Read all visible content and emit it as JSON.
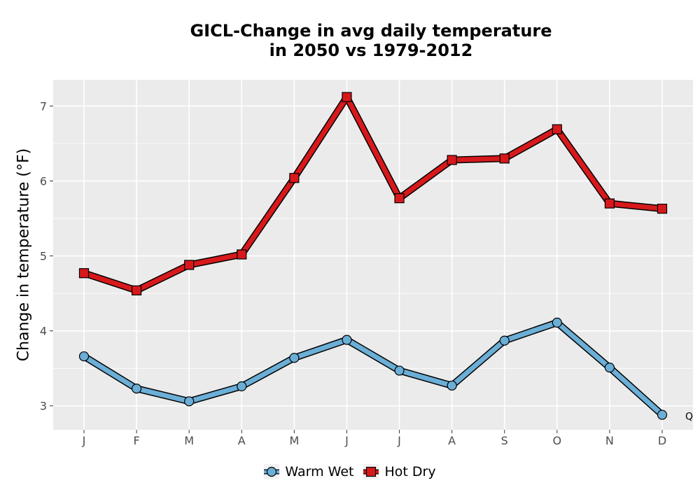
{
  "chart_data": {
    "type": "line",
    "title": [
      "GICL-Change in avg daily temperature",
      "in 2050 vs 1979-2012"
    ],
    "xlabel": "",
    "ylabel": "Change in temperature (°F)",
    "categories": [
      "J",
      "F",
      "M",
      "A",
      "M",
      "J",
      "J",
      "A",
      "S",
      "O",
      "N",
      "D"
    ],
    "ylim": [
      2.68,
      7.35
    ],
    "yticks": [
      3,
      4,
      5,
      6,
      7
    ],
    "grid": true,
    "legend_position": "bottom",
    "series": [
      {
        "name": "Warm Wet",
        "marker": "circle",
        "color": "#6baed6",
        "values": [
          3.66,
          3.23,
          3.06,
          3.26,
          3.64,
          3.88,
          3.47,
          3.27,
          3.87,
          4.11,
          3.51,
          2.88
        ]
      },
      {
        "name": "Hot Dry",
        "marker": "square",
        "color": "#d7191c",
        "values": [
          4.77,
          4.54,
          4.88,
          5.02,
          6.04,
          7.12,
          5.77,
          6.28,
          6.3,
          6.69,
          5.7,
          5.63
        ]
      }
    ],
    "annotations": [
      {
        "text": "Q",
        "x_index": 11,
        "y": 2.86
      }
    ]
  }
}
